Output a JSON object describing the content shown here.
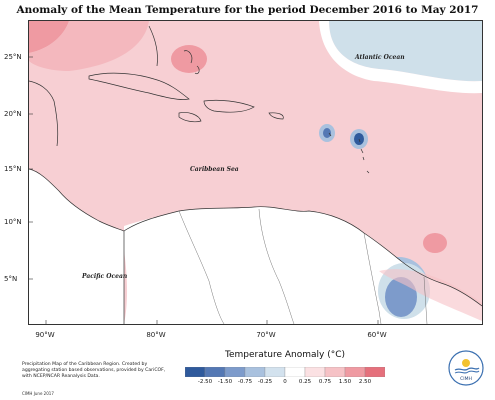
{
  "title": "Anomaly of the Mean Temperature for the period December 2016 to May 2017",
  "map": {
    "lat_labels": [
      "25°N",
      "20°N",
      "15°N",
      "10°N",
      "5°N"
    ],
    "lon_labels": [
      "90°W",
      "80°W",
      "70°W",
      "60°W"
    ],
    "ocean_labels": {
      "atlantic": "Atlantic Ocean",
      "caribbean": "Caribbean Sea",
      "pacific": "Pacific Ocean"
    }
  },
  "legend": {
    "title": "Temperature Anomaly (°C)",
    "ticks": [
      "-2.50",
      "-1.50",
      "-0.75",
      "-0.25",
      "0",
      "0.25",
      "0.75",
      "1.50",
      "2.50"
    ],
    "colors": [
      "#2f5a9c",
      "#5478b4",
      "#7d9bcb",
      "#a9c1de",
      "#d3e2ee",
      "#ffffff",
      "#fbe1e3",
      "#f6c2c6",
      "#ef9aa2",
      "#e5707c"
    ]
  },
  "footnote": "Precipitation Map of the Caribbean Region. Created by aggregating station based observations, provided by CariCOF, with NCEP/NCAR Reanalysis Data.",
  "credit": "CIMH June 2017",
  "logo": {
    "text": "CIMH",
    "icon": "cimh-logo-icon"
  }
}
